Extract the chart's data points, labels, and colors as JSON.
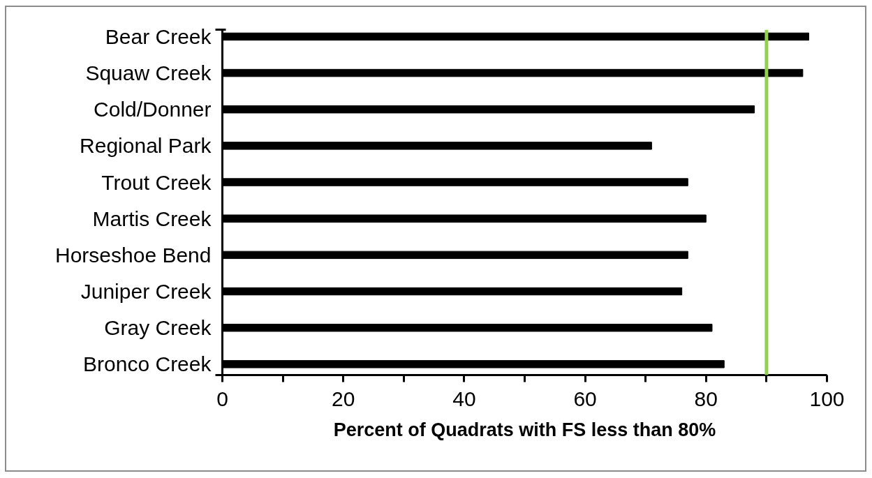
{
  "chart_data": {
    "type": "bar",
    "orientation": "horizontal",
    "xlabel": "Percent of Quadrats with FS less than 80%",
    "categories": [
      "Bear Creek",
      "Squaw Creek",
      "Cold/Donner",
      "Regional Park",
      "Trout Creek",
      "Martis Creek",
      "Horseshoe Bend",
      "Juniper Creek",
      "Gray Creek",
      "Bronco Creek"
    ],
    "values": [
      97,
      96,
      88,
      71,
      77,
      80,
      77,
      76,
      81,
      83
    ],
    "color": "#000000",
    "xlim": [
      0,
      100
    ],
    "xticks": [
      0,
      {
        "value": 10,
        "label": null
      },
      20,
      {
        "value": 30,
        "label": null
      },
      40,
      {
        "value": 50,
        "label": null
      },
      60,
      {
        "value": 70,
        "label": null
      },
      80,
      {
        "value": 90,
        "label": null
      },
      100
    ],
    "ref_lines": [
      {
        "axis": "x",
        "value": 90,
        "color": "#92d050"
      }
    ],
    "grid": false
  }
}
